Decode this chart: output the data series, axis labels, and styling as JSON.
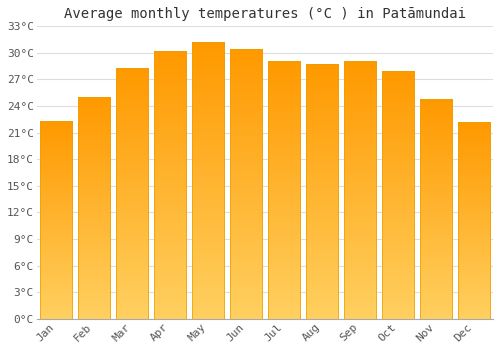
{
  "title": "Average monthly temperatures (°C ) in Patāmundai",
  "months": [
    "Jan",
    "Feb",
    "Mar",
    "Apr",
    "May",
    "Jun",
    "Jul",
    "Aug",
    "Sep",
    "Oct",
    "Nov",
    "Dec"
  ],
  "values": [
    22.3,
    25.0,
    28.3,
    30.2,
    31.2,
    30.4,
    29.0,
    28.7,
    29.0,
    27.9,
    24.7,
    22.2
  ],
  "bar_color_top": "#FFA500",
  "bar_color_bottom": "#FFD060",
  "bar_edge_color": "#E8A000",
  "ylim": [
    0,
    33
  ],
  "yticks": [
    0,
    3,
    6,
    9,
    12,
    15,
    18,
    21,
    24,
    27,
    30,
    33
  ],
  "ytick_labels": [
    "0°C",
    "3°C",
    "6°C",
    "9°C",
    "12°C",
    "15°C",
    "18°C",
    "21°C",
    "24°C",
    "27°C",
    "30°C",
    "33°C"
  ],
  "grid_color": "#dddddd",
  "bg_color": "#ffffff",
  "plot_bg_color": "#f8f8f8",
  "title_fontsize": 10,
  "tick_fontsize": 8,
  "font_family": "monospace",
  "bar_width": 0.85
}
